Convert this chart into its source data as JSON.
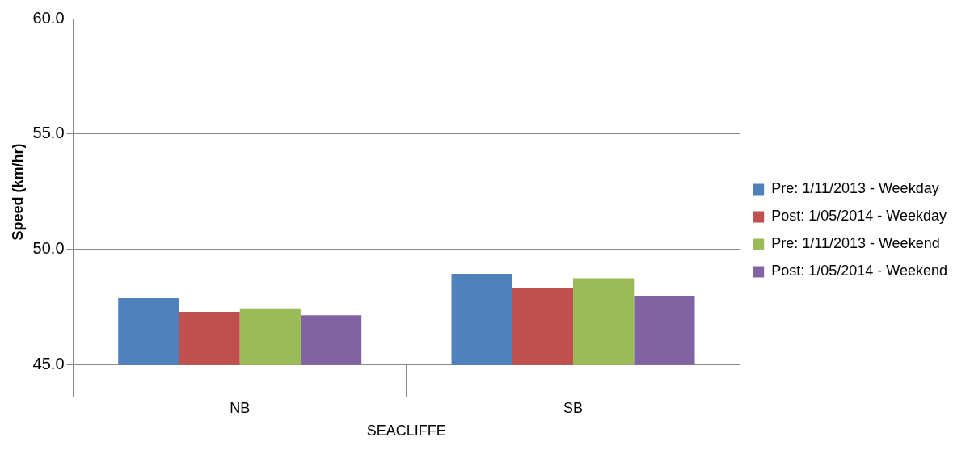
{
  "chart_data": {
    "type": "bar",
    "ylabel": "Speed (km/hr)",
    "xlabel": "SEACLIFFE",
    "categories": [
      "NB",
      "SB"
    ],
    "series": [
      {
        "name": "Pre: 1/11/2013 - Weekday",
        "color": "#4f81bd",
        "values": [
          47.9,
          48.95
        ]
      },
      {
        "name": "Post: 1/05/2014 - Weekday",
        "color": "#c0504d",
        "values": [
          47.3,
          48.35
        ]
      },
      {
        "name": "Pre: 1/11/2013 - Weekend",
        "color": "#9bbb59",
        "values": [
          47.45,
          48.75
        ]
      },
      {
        "name": "Post: 1/05/2014 - Weekend",
        "color": "#8064a2",
        "values": [
          47.15,
          48.0
        ]
      }
    ],
    "ylim": [
      45,
      60
    ],
    "yticks": [
      {
        "value": 45,
        "label": "45.0"
      },
      {
        "value": 50,
        "label": "50.0"
      },
      {
        "value": 55,
        "label": "55.0"
      },
      {
        "value": 60,
        "label": "60.0"
      }
    ],
    "grid": "y",
    "legend": "right"
  }
}
